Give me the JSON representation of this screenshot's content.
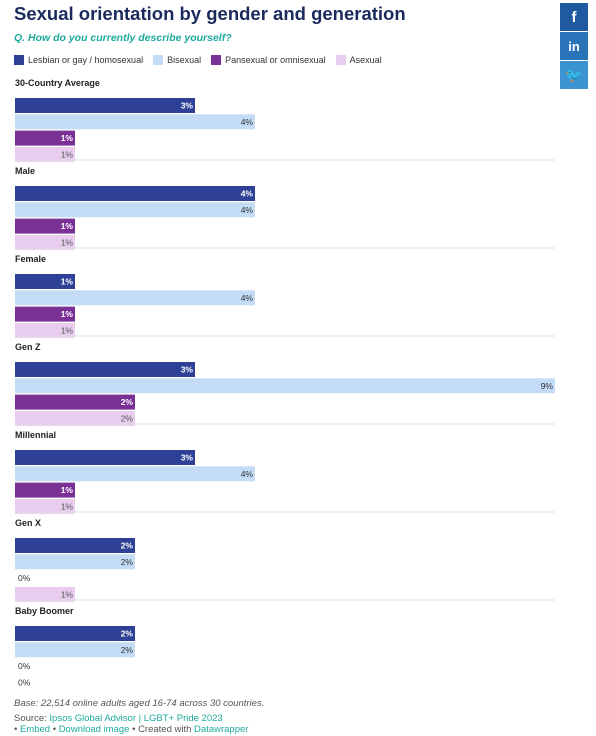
{
  "title": "Sexual orientation by gender and generation",
  "subtitle": "Q. How do you currently describe yourself?",
  "social": {
    "facebook": "f",
    "linkedin": "in",
    "twitter": "🐦"
  },
  "colors": {
    "lesbian_gay": "#2e4196",
    "bisexual": "#c3dbf7",
    "pansexual": "#7a3196",
    "asexual": "#e8cdee"
  },
  "chart_data": {
    "type": "bar",
    "orientation": "horizontal",
    "xlim": [
      0,
      9
    ],
    "legend_position": "top",
    "series": [
      {
        "name": "Lesbian or gay / homosexual",
        "color": "#2e4196"
      },
      {
        "name": "Bisexual",
        "color": "#c3dbf7"
      },
      {
        "name": "Pansexual or omnisexual",
        "color": "#7a3196"
      },
      {
        "name": "Asexual",
        "color": "#e8cdee"
      }
    ],
    "groups": [
      {
        "label": "30-Country Average",
        "values": [
          3,
          4,
          1,
          1
        ]
      },
      {
        "label": "Male",
        "values": [
          4,
          4,
          1,
          1
        ]
      },
      {
        "label": "Female",
        "values": [
          1,
          4,
          1,
          1
        ]
      },
      {
        "label": "Gen Z",
        "values": [
          3,
          9,
          2,
          2
        ]
      },
      {
        "label": "Millennial",
        "values": [
          3,
          4,
          1,
          1
        ]
      },
      {
        "label": "Gen X",
        "values": [
          2,
          2,
          0,
          1
        ]
      },
      {
        "label": "Baby Boomer",
        "values": [
          2,
          2,
          0,
          0
        ]
      }
    ],
    "value_suffix": "%"
  },
  "footer": {
    "note": "Base: 22,514 online adults aged 16-74 across 30 countries.",
    "source_prefix": "Source: ",
    "source": "Ipsos Global Advisor | LGBT+ Pride 2023",
    "bullet": "•",
    "embed": "Embed",
    "download": "Download image",
    "created_with": "Created with",
    "datawrapper": "Datawrapper"
  }
}
